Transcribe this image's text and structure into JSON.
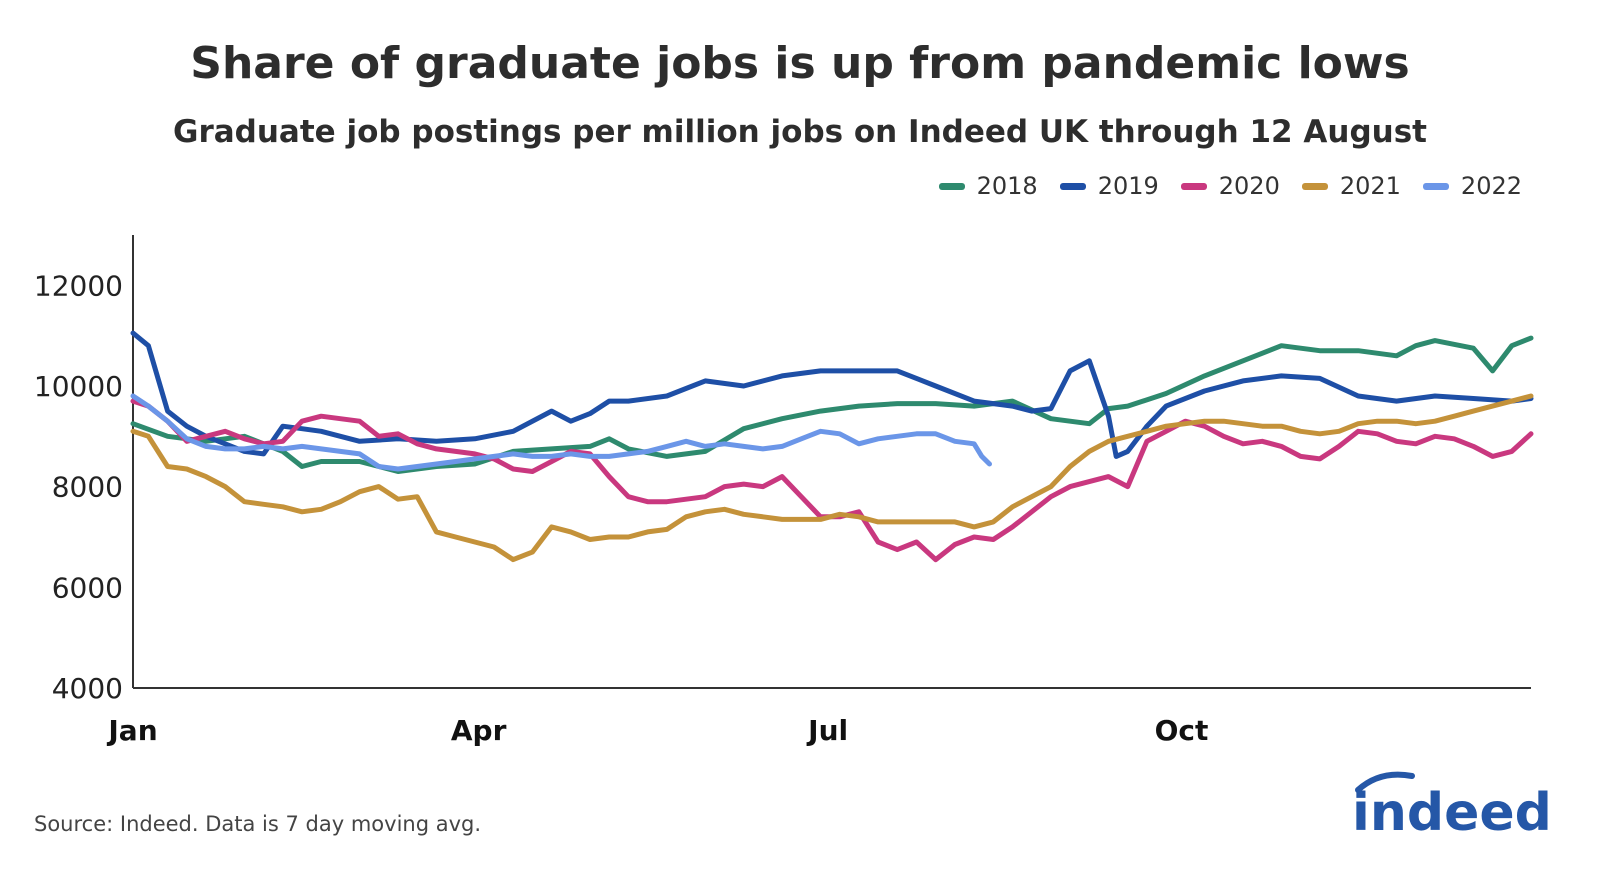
{
  "chart_data": {
    "type": "line",
    "title": "Share of graduate jobs is up from pandemic lows",
    "subtitle": "Graduate job postings per million jobs on Indeed UK through 12 August",
    "ylim": [
      4000,
      12000
    ],
    "y_ticks": [
      4000,
      6000,
      8000,
      10000,
      12000
    ],
    "x_tick_labels": [
      "Jan",
      "Apr",
      "Jul",
      "Oct"
    ],
    "x_tick_days": [
      1,
      91,
      182,
      274
    ],
    "x_range_days": [
      1,
      365
    ],
    "legend_position": "top-right",
    "grid": false,
    "x_key": "day_of_year",
    "series": [
      {
        "name": "2018",
        "color": "#2e8a6e",
        "x": [
          1,
          10,
          20,
          30,
          40,
          45,
          50,
          60,
          70,
          80,
          90,
          100,
          110,
          120,
          125,
          130,
          140,
          150,
          160,
          170,
          180,
          190,
          200,
          210,
          220,
          230,
          240,
          250,
          255,
          260,
          270,
          280,
          290,
          300,
          310,
          320,
          330,
          335,
          340,
          350,
          355,
          360,
          365
        ],
        "values": [
          9250,
          9000,
          8900,
          9000,
          8700,
          8400,
          8500,
          8500,
          8300,
          8400,
          8450,
          8700,
          8750,
          8800,
          8950,
          8750,
          8600,
          8700,
          9150,
          9350,
          9500,
          9600,
          9650,
          9650,
          9600,
          9700,
          9350,
          9250,
          9550,
          9600,
          9850,
          10200,
          10500,
          10800,
          10700,
          10700,
          10600,
          10800,
          10900,
          10750,
          10300,
          10800,
          10950
        ]
      },
      {
        "name": "2019",
        "color": "#1e4fa6",
        "x": [
          1,
          5,
          10,
          15,
          20,
          30,
          35,
          40,
          45,
          50,
          60,
          70,
          80,
          90,
          100,
          110,
          115,
          120,
          125,
          130,
          140,
          150,
          160,
          170,
          180,
          190,
          200,
          205,
          210,
          220,
          230,
          235,
          240,
          245,
          250,
          255,
          257,
          260,
          265,
          270,
          280,
          290,
          300,
          310,
          320,
          330,
          340,
          350,
          360,
          365
        ],
        "values": [
          11050,
          10800,
          9500,
          9200,
          9000,
          8700,
          8650,
          9200,
          9150,
          9100,
          8900,
          8950,
          8900,
          8950,
          9100,
          9500,
          9300,
          9450,
          9700,
          9700,
          9800,
          10100,
          10000,
          10200,
          10300,
          10300,
          10300,
          10150,
          10000,
          9700,
          9600,
          9500,
          9550,
          10300,
          10500,
          9400,
          8600,
          8700,
          9200,
          9600,
          9900,
          10100,
          10200,
          10150,
          9800,
          9700,
          9800,
          9750,
          9700,
          9750
        ]
      },
      {
        "name": "2020",
        "color": "#c9387f",
        "x": [
          1,
          5,
          10,
          15,
          20,
          25,
          30,
          35,
          40,
          45,
          50,
          55,
          60,
          65,
          70,
          75,
          80,
          85,
          90,
          95,
          100,
          105,
          110,
          115,
          120,
          125,
          130,
          135,
          140,
          145,
          150,
          155,
          160,
          165,
          170,
          175,
          180,
          185,
          190,
          195,
          200,
          205,
          210,
          215,
          220,
          225,
          230,
          235,
          240,
          245,
          250,
          255,
          260,
          265,
          270,
          275,
          280,
          285,
          290,
          295,
          300,
          305,
          310,
          315,
          320,
          325,
          330,
          335,
          340,
          345,
          350,
          355,
          360,
          365
        ],
        "values": [
          9700,
          9600,
          9300,
          8900,
          9000,
          9100,
          8950,
          8850,
          8900,
          9300,
          9400,
          9350,
          9300,
          9000,
          9050,
          8850,
          8750,
          8700,
          8650,
          8550,
          8350,
          8300,
          8500,
          8700,
          8650,
          8200,
          7800,
          7700,
          7700,
          7750,
          7800,
          8000,
          8050,
          8000,
          8200,
          7800,
          7400,
          7400,
          7500,
          6900,
          6750,
          6900,
          6550,
          6850,
          7000,
          6950,
          7200,
          7500,
          7800,
          8000,
          8100,
          8200,
          8000,
          8900,
          9100,
          9300,
          9200,
          9000,
          8850,
          8900,
          8800,
          8600,
          8550,
          8800,
          9100,
          9050,
          8900,
          8850,
          9000,
          8950,
          8800,
          8600,
          8700,
          9050
        ]
      },
      {
        "name": "2021",
        "color": "#c4923a",
        "x": [
          1,
          5,
          10,
          15,
          20,
          25,
          30,
          35,
          40,
          45,
          50,
          55,
          60,
          65,
          70,
          75,
          80,
          85,
          90,
          95,
          100,
          105,
          110,
          115,
          120,
          125,
          130,
          135,
          140,
          145,
          150,
          155,
          160,
          165,
          170,
          175,
          180,
          185,
          190,
          195,
          200,
          205,
          210,
          215,
          220,
          225,
          230,
          235,
          240,
          245,
          250,
          255,
          260,
          265,
          270,
          275,
          280,
          285,
          290,
          295,
          300,
          305,
          310,
          315,
          320,
          325,
          330,
          335,
          340,
          345,
          350,
          355,
          360,
          365
        ],
        "values": [
          9100,
          9000,
          8400,
          8350,
          8200,
          8000,
          7700,
          7650,
          7600,
          7500,
          7550,
          7700,
          7900,
          8000,
          7750,
          7800,
          7100,
          7000,
          6900,
          6800,
          6550,
          6700,
          7200,
          7100,
          6950,
          7000,
          7000,
          7100,
          7150,
          7400,
          7500,
          7550,
          7450,
          7400,
          7350,
          7350,
          7350,
          7450,
          7400,
          7300,
          7300,
          7300,
          7300,
          7300,
          7200,
          7300,
          7600,
          7800,
          8000,
          8400,
          8700,
          8900,
          9000,
          9100,
          9200,
          9250,
          9300,
          9300,
          9250,
          9200,
          9200,
          9100,
          9050,
          9100,
          9250,
          9300,
          9300,
          9250,
          9300,
          9400,
          9500,
          9600,
          9700,
          9800
        ]
      },
      {
        "name": "2022",
        "color": "#6b96e8",
        "x": [
          1,
          5,
          10,
          15,
          20,
          25,
          30,
          35,
          40,
          45,
          50,
          55,
          60,
          65,
          70,
          75,
          80,
          85,
          90,
          95,
          100,
          105,
          110,
          115,
          120,
          125,
          130,
          135,
          140,
          145,
          150,
          155,
          160,
          165,
          170,
          175,
          180,
          185,
          190,
          195,
          200,
          205,
          210,
          215,
          220,
          222,
          224
        ],
        "values": [
          9800,
          9600,
          9300,
          8950,
          8800,
          8750,
          8750,
          8800,
          8750,
          8800,
          8750,
          8700,
          8650,
          8400,
          8350,
          8400,
          8450,
          8500,
          8550,
          8600,
          8650,
          8600,
          8600,
          8650,
          8600,
          8600,
          8650,
          8700,
          8800,
          8900,
          8800,
          8850,
          8800,
          8750,
          8800,
          8950,
          9100,
          9050,
          8850,
          8950,
          9000,
          9050,
          9050,
          8900,
          8850,
          8600,
          8450
        ]
      }
    ],
    "source": "Source: Indeed. Data is 7 day moving avg.",
    "logo_text": "indeed"
  }
}
